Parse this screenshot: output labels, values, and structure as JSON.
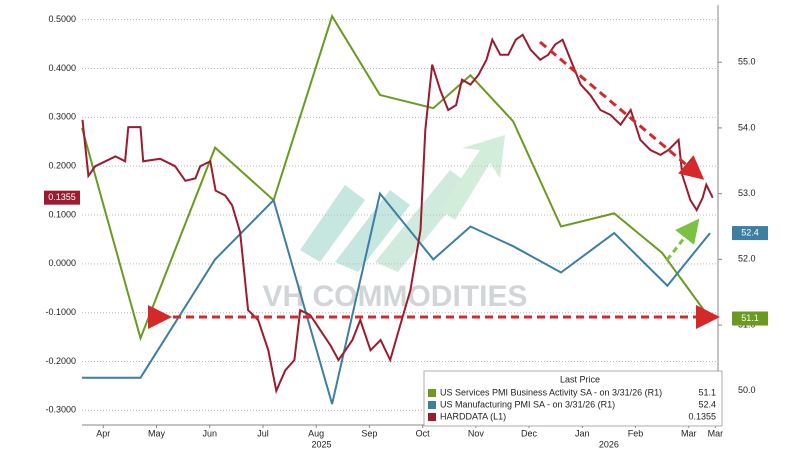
{
  "chart_data": {
    "type": "line",
    "xlim": [
      0.1,
      12.05
    ],
    "xticks": [
      {
        "value": 0.5,
        "label": "Apr"
      },
      {
        "value": 1.5,
        "label": "May"
      },
      {
        "value": 2.5,
        "label": "Jun"
      },
      {
        "value": 3.5,
        "label": "Jul"
      },
      {
        "value": 4.5,
        "label": "Aug"
      },
      {
        "value": 5.5,
        "label": "Sep"
      },
      {
        "value": 6.5,
        "label": "Oct"
      },
      {
        "value": 7.5,
        "label": "Nov"
      },
      {
        "value": 8.5,
        "label": "Dec"
      },
      {
        "value": 9.5,
        "label": "Jan"
      },
      {
        "value": 10.5,
        "label": "Feb"
      },
      {
        "value": 11.5,
        "label": "Mar"
      },
      {
        "value": 12.0,
        "label": "Mar"
      }
    ],
    "x_period_labels": [
      {
        "value": 4.6,
        "label": "2025"
      },
      {
        "value": 10.0,
        "label": "2026"
      }
    ],
    "ylim": [
      -0.33,
      0.53
    ],
    "yticks": [
      {
        "value": 0.5,
        "label": "0.5000"
      },
      {
        "value": 0.4,
        "label": "0.4000"
      },
      {
        "value": 0.3,
        "label": "0.3000"
      },
      {
        "value": 0.2,
        "label": "0.2000"
      },
      {
        "value": 0.1,
        "label": "0.1000"
      },
      {
        "value": 0,
        "label": "0.0000"
      },
      {
        "value": -0.1,
        "label": "-0.1000"
      },
      {
        "value": -0.2,
        "label": "-0.2000"
      },
      {
        "value": -0.3,
        "label": "-0.3000"
      }
    ],
    "y2lim": [
      49.48,
      55.87
    ],
    "y2ticks": [
      {
        "value": 50,
        "label": "50.0"
      },
      {
        "value": 51,
        "label": "51.0"
      },
      {
        "value": 52,
        "label": "52.0"
      },
      {
        "value": 53,
        "label": "53.0"
      },
      {
        "value": 54,
        "label": "54.0"
      },
      {
        "value": 55,
        "label": "55.0"
      }
    ],
    "grid": true,
    "legend_title": "Last Price",
    "watermark": "VH COMMODITIES",
    "series": [
      {
        "name": "US Services PMI Business Activity SA - on 3/31/26 (R1)",
        "color": "#6a9a1f",
        "axis": "y2",
        "x": [
          0.1,
          1.2,
          2.6,
          3.7,
          4.8,
          5.7,
          6.7,
          7.4,
          8.2,
          9.1,
          10.1,
          11.0,
          11.9
        ],
        "values": [
          54.0,
          50.8,
          53.7,
          52.9,
          55.7,
          54.5,
          54.3,
          54.8,
          54.1,
          52.5,
          52.7,
          52.1,
          51.1
        ]
      },
      {
        "name": "US Manufacturing PMI SA - on 3/31/26 (R1)",
        "color": "#3c7fa0",
        "axis": "y2",
        "x": [
          0.1,
          1.2,
          2.6,
          3.7,
          4.8,
          5.7,
          6.7,
          7.4,
          8.2,
          9.1,
          10.1,
          11.1,
          11.9
        ],
        "values": [
          50.2,
          50.2,
          52.0,
          52.9,
          49.8,
          53.0,
          52.0,
          52.5,
          52.2,
          51.8,
          52.4,
          51.6,
          52.4
        ]
      },
      {
        "name": "HARDDATA (L1)",
        "color": "#9b1c31",
        "axis": "y",
        "x": [
          0.11,
          0.22,
          0.35,
          0.54,
          0.73,
          0.91,
          0.97,
          1.2,
          1.25,
          1.57,
          1.85,
          2.04,
          2.23,
          2.32,
          2.51,
          2.61,
          2.79,
          2.92,
          3.07,
          3.22,
          3.41,
          3.6,
          3.75,
          3.92,
          4.09,
          4.2,
          4.39,
          4.58,
          4.77,
          4.92,
          5.05,
          5.18,
          5.33,
          5.52,
          5.71,
          5.89,
          6.08,
          6.27,
          6.46,
          6.55,
          6.68,
          6.83,
          6.98,
          7.13,
          7.24,
          7.4,
          7.55,
          7.7,
          7.81,
          7.96,
          8.11,
          8.25,
          8.38,
          8.53,
          8.71,
          8.86,
          8.99,
          9.13,
          9.28,
          9.47,
          9.65,
          9.84,
          10.03,
          10.22,
          10.41,
          10.59,
          10.78,
          10.97,
          11.12,
          11.31,
          11.38,
          11.53,
          11.65,
          11.76,
          11.83,
          11.95
        ],
        "values": [
          0.295,
          0.18,
          0.2,
          0.21,
          0.22,
          0.21,
          0.28,
          0.28,
          0.21,
          0.215,
          0.2,
          0.17,
          0.175,
          0.2,
          0.21,
          0.15,
          0.14,
          0.12,
          0.065,
          -0.095,
          -0.115,
          -0.177,
          -0.26,
          -0.218,
          -0.197,
          -0.095,
          -0.105,
          -0.136,
          -0.167,
          -0.197,
          -0.177,
          -0.156,
          -0.115,
          -0.177,
          -0.156,
          -0.197,
          -0.125,
          -0.054,
          0.069,
          0.274,
          0.408,
          0.356,
          0.315,
          0.325,
          0.377,
          0.367,
          0.387,
          0.418,
          0.459,
          0.428,
          0.428,
          0.459,
          0.469,
          0.438,
          0.418,
          0.428,
          0.449,
          0.459,
          0.418,
          0.367,
          0.346,
          0.315,
          0.305,
          0.285,
          0.315,
          0.254,
          0.233,
          0.223,
          0.233,
          0.254,
          0.182,
          0.131,
          0.11,
          0.135,
          0.162,
          0.1355
        ]
      }
    ]
  }
}
